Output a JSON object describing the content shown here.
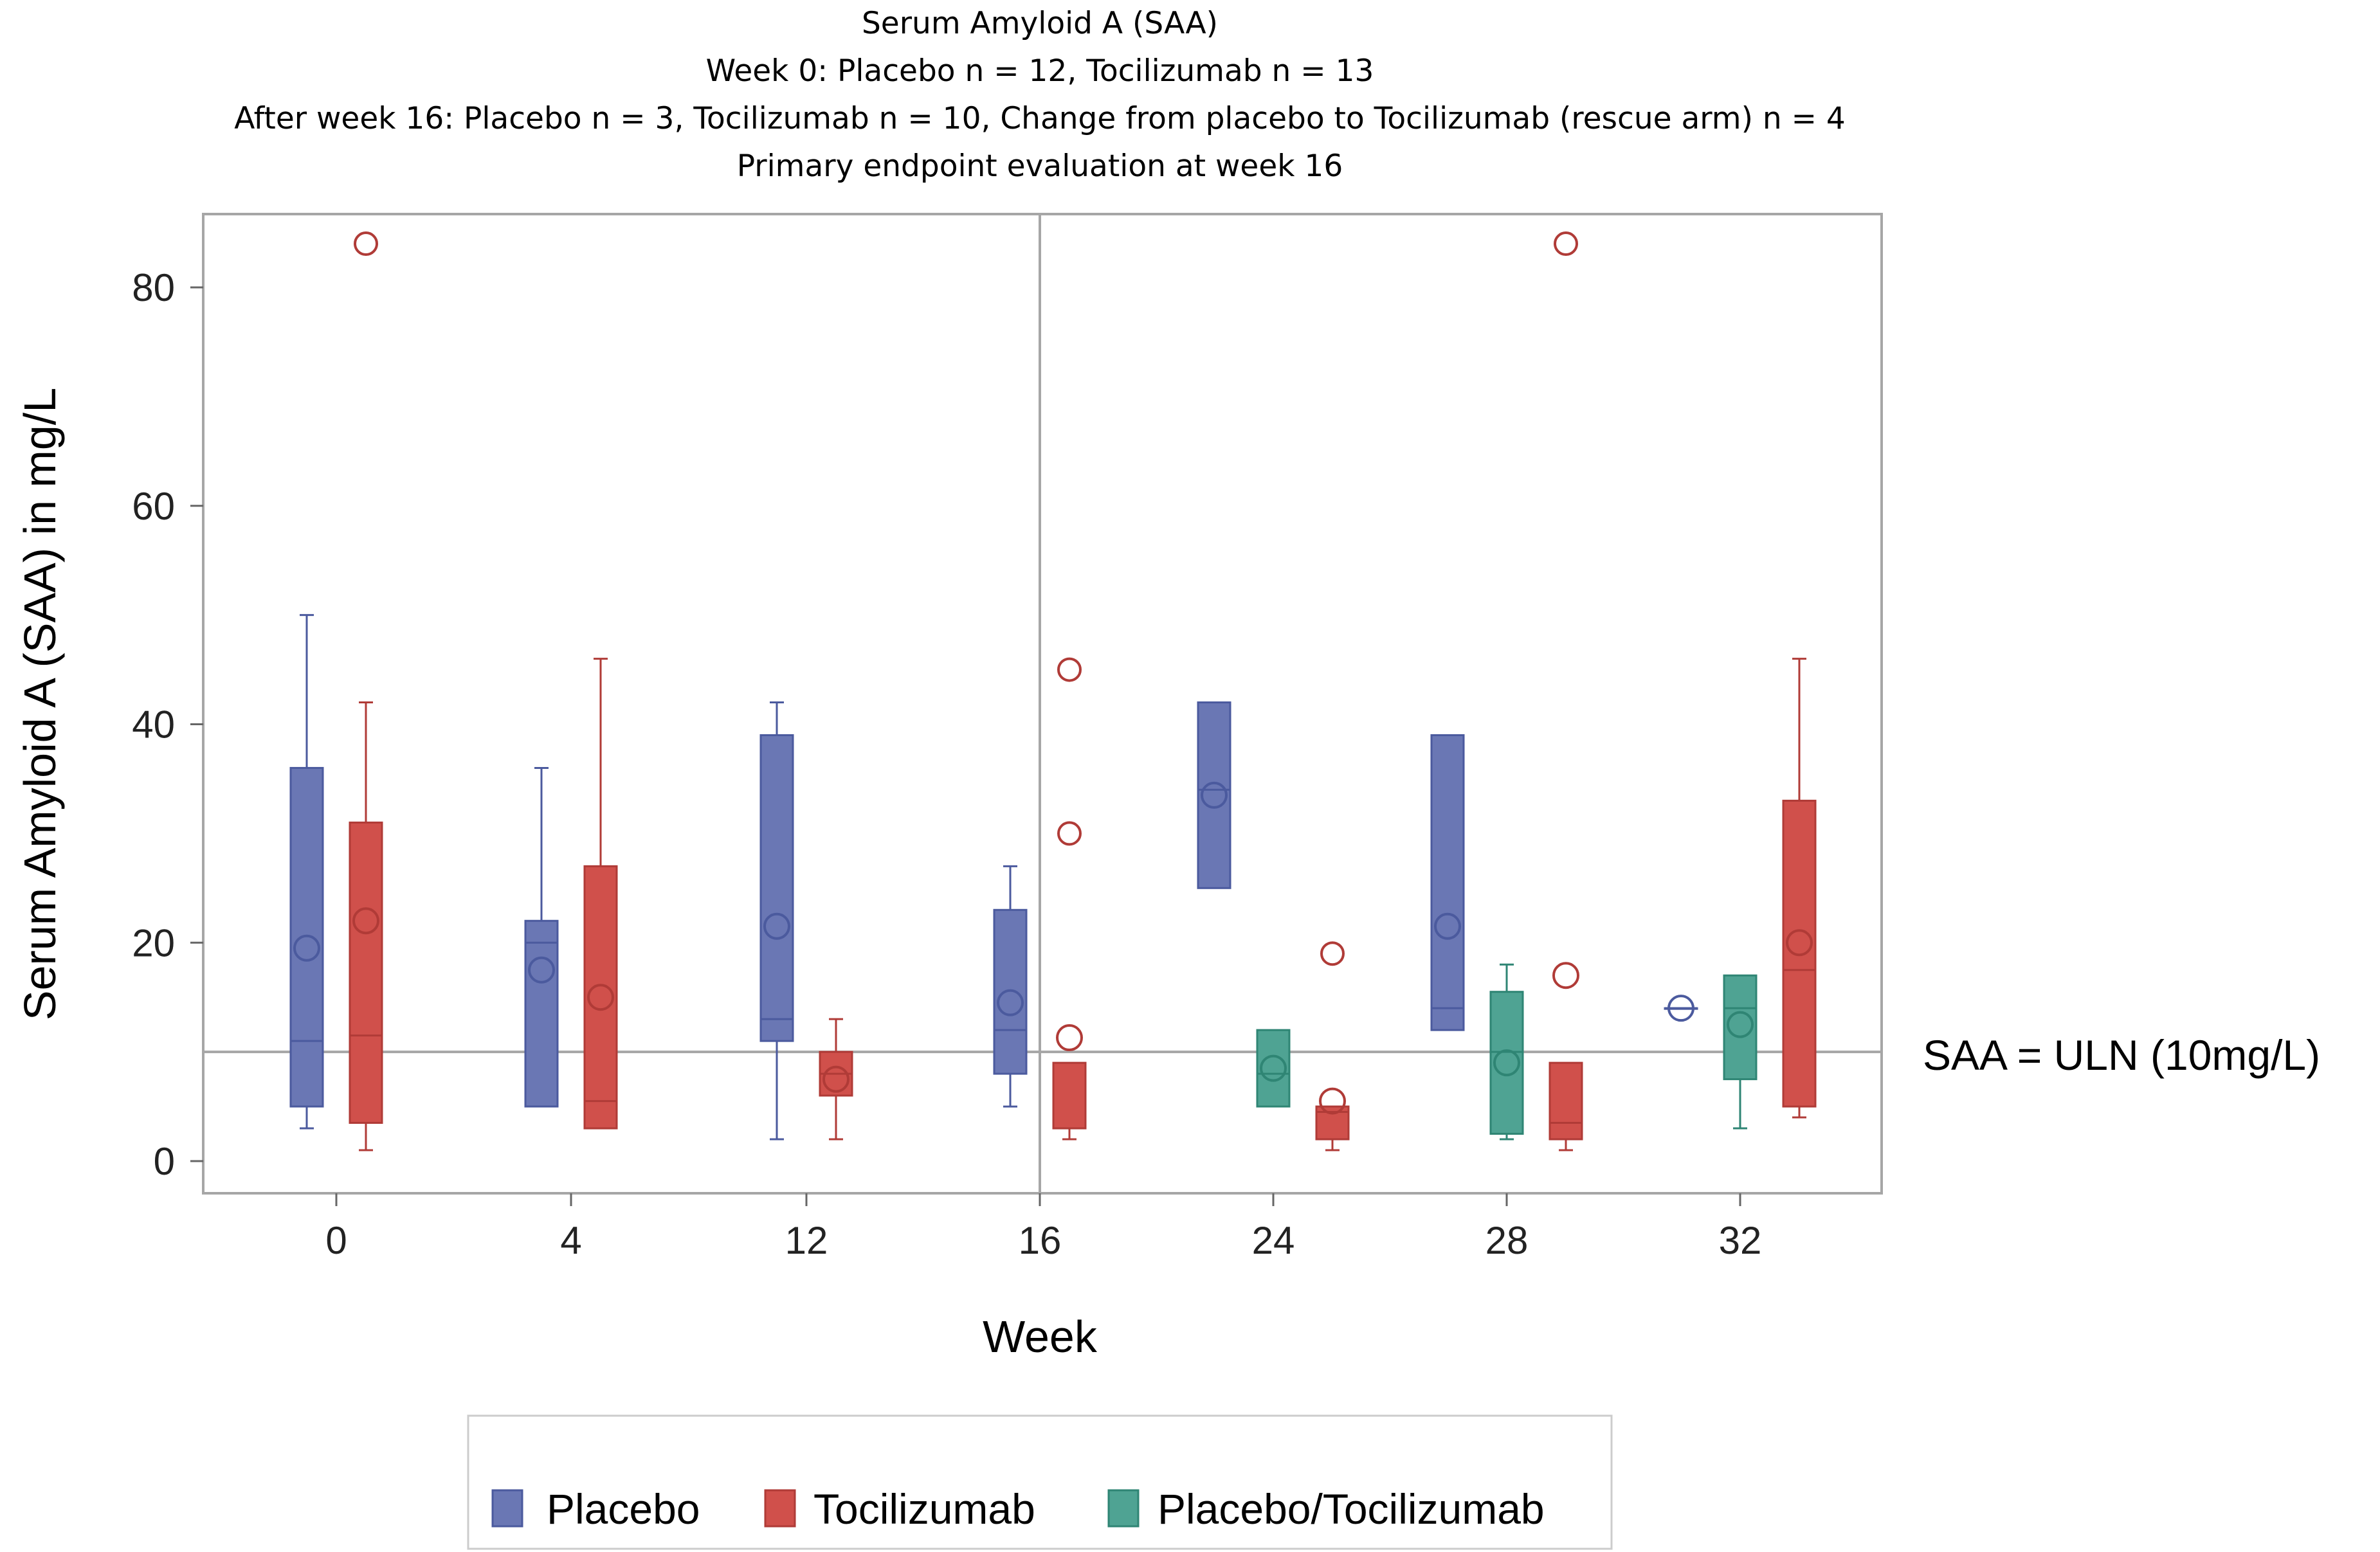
{
  "chart_data": {
    "type": "box",
    "title_lines": [
      "Serum Amyloid A (SAA)",
      "Week 0: Placebo n = 12, Tocilizumab n = 13",
      "After week 16: Placebo n = 3, Tocilizumab n = 10, Change from placebo to Tocilizumab (rescue arm) n = 4",
      "Primary endpoint evaluation at week 16"
    ],
    "xlabel": "Week",
    "ylabel": "Serum Amyloid A (SAA) in mg/L",
    "categories": [
      "0",
      "4",
      "12",
      "16",
      "24",
      "28",
      "32"
    ],
    "ylim": [
      -3,
      87
    ],
    "yticks": [
      0,
      20,
      40,
      60,
      80
    ],
    "reference_line": {
      "y": 10,
      "label": "SAA = ULN (10mg/L)"
    },
    "vertical_line": {
      "category": "16"
    },
    "colors": {
      "Placebo": {
        "fill": "#6a77b4",
        "stroke": "#4b5a9e"
      },
      "Tocilizumab": {
        "fill": "#d0504b",
        "stroke": "#b03b37"
      },
      "Placebo/Tocilizumab": {
        "fill": "#4fa393",
        "stroke": "#2f8574"
      }
    },
    "legend": [
      "Placebo",
      "Tocilizumab",
      "Placebo/Tocilizumab"
    ],
    "boxes": [
      {
        "category": "0",
        "series": "Placebo",
        "offset": -1,
        "whisker_low": 3,
        "q1": 5,
        "median": 11,
        "q3": 36,
        "whisker_high": 50,
        "mean": 19.5,
        "outliers": []
      },
      {
        "category": "0",
        "series": "Tocilizumab",
        "offset": 1,
        "whisker_low": 1,
        "q1": 3.5,
        "median": 11.5,
        "q3": 31,
        "whisker_high": 42,
        "mean": 22,
        "outliers": [
          84
        ]
      },
      {
        "category": "4",
        "series": "Placebo",
        "offset": -1,
        "whisker_low": 5,
        "q1": 5,
        "median": 20,
        "q3": 22,
        "whisker_high": 36,
        "mean": 17.5,
        "outliers": []
      },
      {
        "category": "4",
        "series": "Tocilizumab",
        "offset": 1,
        "whisker_low": 3,
        "q1": 3,
        "median": 5.5,
        "q3": 27,
        "whisker_high": 46,
        "mean": 15,
        "outliers": []
      },
      {
        "category": "12",
        "series": "Placebo",
        "offset": -1,
        "whisker_low": 2,
        "q1": 11,
        "median": 13,
        "q3": 39,
        "whisker_high": 42,
        "mean": 21.5,
        "outliers": []
      },
      {
        "category": "12",
        "series": "Tocilizumab",
        "offset": 1,
        "whisker_low": 2,
        "q1": 6,
        "median": 8,
        "q3": 10,
        "whisker_high": 13,
        "mean": 7.5,
        "outliers": []
      },
      {
        "category": "16",
        "series": "Placebo",
        "offset": -1,
        "whisker_low": 5,
        "q1": 8,
        "median": 12,
        "q3": 23,
        "whisker_high": 27,
        "mean": 14.5,
        "outliers": []
      },
      {
        "category": "16",
        "series": "Tocilizumab",
        "offset": 1,
        "whisker_low": 2,
        "q1": 3,
        "median": 3,
        "q3": 9,
        "whisker_high": 9,
        "mean": 11.3,
        "outliers": [
          45,
          30
        ]
      },
      {
        "category": "24",
        "series": "Placebo",
        "offset": -2,
        "whisker_low": 25,
        "q1": 25,
        "median": 34,
        "q3": 42,
        "whisker_high": 42,
        "mean": 33.5,
        "outliers": []
      },
      {
        "category": "24",
        "series": "Placebo/Tocilizumab",
        "offset": 0,
        "whisker_low": 5,
        "q1": 5,
        "median": 8,
        "q3": 12,
        "whisker_high": 12,
        "mean": 8.5,
        "outliers": []
      },
      {
        "category": "24",
        "series": "Tocilizumab",
        "offset": 2,
        "whisker_low": 1,
        "q1": 2,
        "median": 4.5,
        "q3": 5,
        "whisker_high": 5,
        "mean": 5.5,
        "outliers": [
          19
        ]
      },
      {
        "category": "28",
        "series": "Placebo",
        "offset": -2,
        "whisker_low": 12,
        "q1": 12,
        "median": 14,
        "q3": 39,
        "whisker_high": 39,
        "mean": 21.5,
        "outliers": []
      },
      {
        "category": "28",
        "series": "Placebo/Tocilizumab",
        "offset": 0,
        "whisker_low": 2,
        "q1": 2.5,
        "median": 10,
        "q3": 15.5,
        "whisker_high": 18,
        "mean": 9,
        "outliers": []
      },
      {
        "category": "28",
        "series": "Tocilizumab",
        "offset": 2,
        "whisker_low": 1,
        "q1": 2,
        "median": 3.5,
        "q3": 9,
        "whisker_high": 9,
        "mean": 17,
        "outliers": [
          84
        ]
      },
      {
        "category": "32",
        "series": "Placebo",
        "offset": -2,
        "whisker_low": 14,
        "q1": 14,
        "median": 14,
        "q3": 14,
        "whisker_high": 14,
        "mean": 14,
        "outliers": []
      },
      {
        "category": "32",
        "series": "Placebo/Tocilizumab",
        "offset": 0,
        "whisker_low": 3,
        "q1": 7.5,
        "median": 14,
        "q3": 17,
        "whisker_high": 17,
        "mean": 12.5,
        "outliers": []
      },
      {
        "category": "32",
        "series": "Tocilizumab",
        "offset": 2,
        "whisker_low": 4,
        "q1": 5,
        "median": 17.5,
        "q3": 33,
        "whisker_high": 46,
        "mean": 20,
        "outliers": []
      }
    ]
  }
}
